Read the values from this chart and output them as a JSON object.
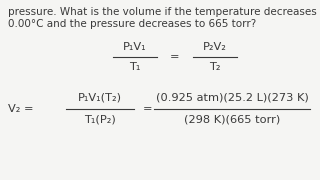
{
  "bg_color": "#f5f5f3",
  "text_color": "#3a3a3a",
  "line1": "pressure. What is the volume if the temperature decreases to",
  "line2": "0.00°C and the pressure decreases to 665 torr?",
  "eq1_num": "P₁V₁",
  "eq1_den": "T₁",
  "eq2_num": "P₂V₂",
  "eq2_den": "T₂",
  "lhs_label": "V₂",
  "lhs_num": "P₁V₁(T₂)",
  "lhs_den": "T₁(P₂)",
  "rhs_num": "(0.925 atm)(25.2 L)(273 K)",
  "rhs_den": "(298 K)(665 torr)"
}
